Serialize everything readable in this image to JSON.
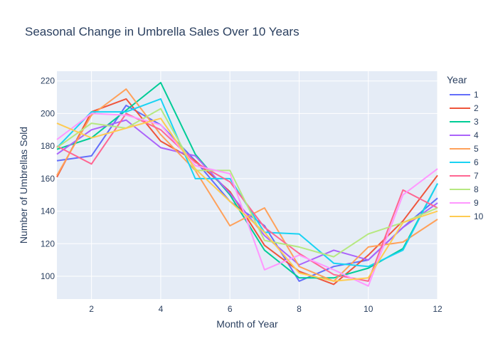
{
  "chart_data": {
    "type": "line",
    "title": "Seasonal Change in Umbrella Sales Over 10 Years",
    "xlabel": "Month of Year",
    "ylabel": "Number of Umbrellas Sold",
    "xlim": [
      1,
      12
    ],
    "ylim": [
      86,
      226
    ],
    "x_ticks": [
      2,
      4,
      6,
      8,
      10,
      12
    ],
    "y_ticks": [
      100,
      120,
      140,
      160,
      180,
      200,
      220
    ],
    "grid": true,
    "plot_background": "#E5ECF6",
    "legend_title": "Year",
    "legend_position": "right",
    "x": [
      1,
      2,
      3,
      4,
      5,
      6,
      7,
      8,
      9,
      10,
      11,
      12
    ],
    "series": [
      {
        "name": "1",
        "color": "#636EFA",
        "values": [
          171,
          174,
          205,
          193,
          171,
          146,
          131,
          97,
          106,
          110,
          130,
          148
        ]
      },
      {
        "name": "2",
        "color": "#EF553B",
        "values": [
          161,
          201,
          209,
          183,
          171,
          152,
          119,
          103,
          95,
          113,
          134,
          162
        ]
      },
      {
        "name": "3",
        "color": "#00CC96",
        "values": [
          178,
          185,
          202,
          219,
          175,
          150,
          116,
          99,
          99,
          105,
          117,
          157
        ]
      },
      {
        "name": "4",
        "color": "#AB63FA",
        "values": [
          175,
          190,
          196,
          179,
          174,
          151,
          125,
          107,
          116,
          110,
          130,
          145
        ]
      },
      {
        "name": "5",
        "color": "#FFA15A",
        "values": [
          162,
          199,
          215,
          187,
          165,
          131,
          142,
          106,
          97,
          118,
          121,
          135
        ]
      },
      {
        "name": "6",
        "color": "#19D3F3",
        "values": [
          179,
          201,
          201,
          209,
          160,
          160,
          127,
          126,
          108,
          106,
          116,
          157
        ]
      },
      {
        "name": "7",
        "color": "#FF6692",
        "values": [
          180,
          169,
          200,
          190,
          170,
          158,
          130,
          114,
          101,
          97,
          153,
          142
        ]
      },
      {
        "name": "8",
        "color": "#B6E880",
        "values": [
          179,
          194,
          191,
          203,
          165,
          165,
          122,
          118,
          112,
          126,
          133,
          142
        ]
      },
      {
        "name": "9",
        "color": "#FF97FF",
        "values": [
          184,
          200,
          199,
          193,
          168,
          163,
          104,
          113,
          104,
          94,
          150,
          166
        ]
      },
      {
        "name": "10",
        "color": "#FECB52",
        "values": [
          194,
          185,
          191,
          197,
          166,
          146,
          127,
          102,
          97,
          99,
          133,
          140
        ]
      }
    ]
  }
}
